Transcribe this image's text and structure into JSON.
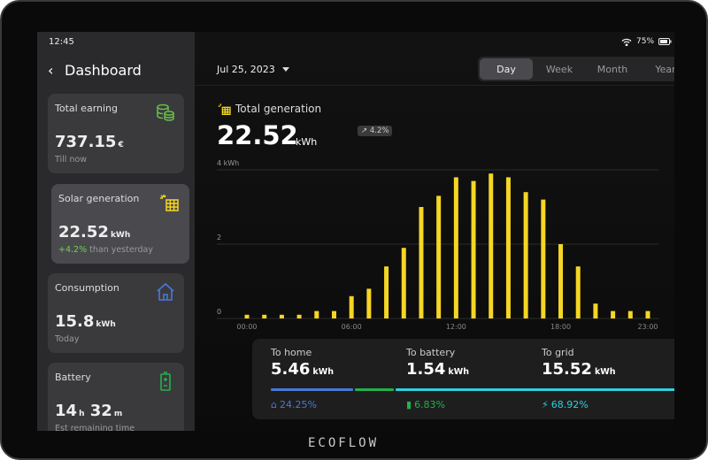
{
  "status": {
    "time": "12:45",
    "battery": "75%"
  },
  "sidebar": {
    "title": "Dashboard",
    "cards": [
      {
        "label": "Total earning",
        "value": "737.15",
        "unit": "€",
        "sub": "Till now",
        "icon": "coins-icon",
        "color": "#6abf4b"
      },
      {
        "label": "Solar generation",
        "value": "22.52",
        "unit": "kWh",
        "change": "+4.2%",
        "sub": "than yesterday",
        "icon": "solar-panel-icon",
        "color": "#f5d623"
      },
      {
        "label": "Consumption",
        "value": "15.8",
        "unit": "kWh",
        "sub": "Today",
        "icon": "home-icon",
        "color": "#4a78d8"
      },
      {
        "label": "Battery",
        "hours": "14",
        "h": "h",
        "minutes": "32",
        "m": "m",
        "sub": "Est remaining time",
        "icon": "battery-icon",
        "color": "#22b24c"
      }
    ]
  },
  "header": {
    "date": "Jul 25, 2023",
    "tabs": [
      "Day",
      "Week",
      "Month",
      "Year"
    ],
    "selected_tab": "Day"
  },
  "generation": {
    "title": "Total generation",
    "value": "22.52",
    "unit": "kWh",
    "change": "4.2%"
  },
  "chart_data": {
    "type": "bar",
    "ylabel": "4 kWh",
    "ylim": [
      0,
      4
    ],
    "yticks": [
      "0",
      "2",
      "4 kWh"
    ],
    "xticks": [
      "00:00",
      "06:00",
      "12:00",
      "18:00",
      "23:00"
    ],
    "categories": [
      "00:00",
      "01:00",
      "02:00",
      "03:00",
      "04:00",
      "05:00",
      "06:00",
      "07:00",
      "08:00",
      "09:00",
      "10:00",
      "11:00",
      "12:00",
      "13:00",
      "14:00",
      "15:00",
      "16:00",
      "17:00",
      "18:00",
      "19:00",
      "20:00",
      "21:00",
      "22:00",
      "23:00"
    ],
    "values": [
      0.1,
      0.1,
      0.1,
      0.1,
      0.2,
      0.2,
      0.6,
      0.8,
      1.4,
      1.9,
      3.0,
      3.3,
      3.8,
      3.7,
      3.9,
      3.8,
      3.4,
      3.2,
      2.0,
      1.4,
      0.4,
      0.2,
      0.2,
      0.2
    ],
    "color": "#f5d623",
    "grid": true
  },
  "distribution": [
    {
      "label": "To home",
      "value": "5.46",
      "unit": "kWh",
      "percent": "24.25%",
      "color": "#4a78d8",
      "icon": "home-icon"
    },
    {
      "label": "To battery",
      "value": "1.54",
      "unit": "kWh",
      "percent": "6.83%",
      "color": "#22b24c",
      "icon": "battery-icon"
    },
    {
      "label": "To grid",
      "value": "15.52",
      "unit": "kWh",
      "percent": "68.92%",
      "color": "#2fd0e0",
      "icon": "power-tower-icon"
    }
  ],
  "brand": "ECOFLOW"
}
